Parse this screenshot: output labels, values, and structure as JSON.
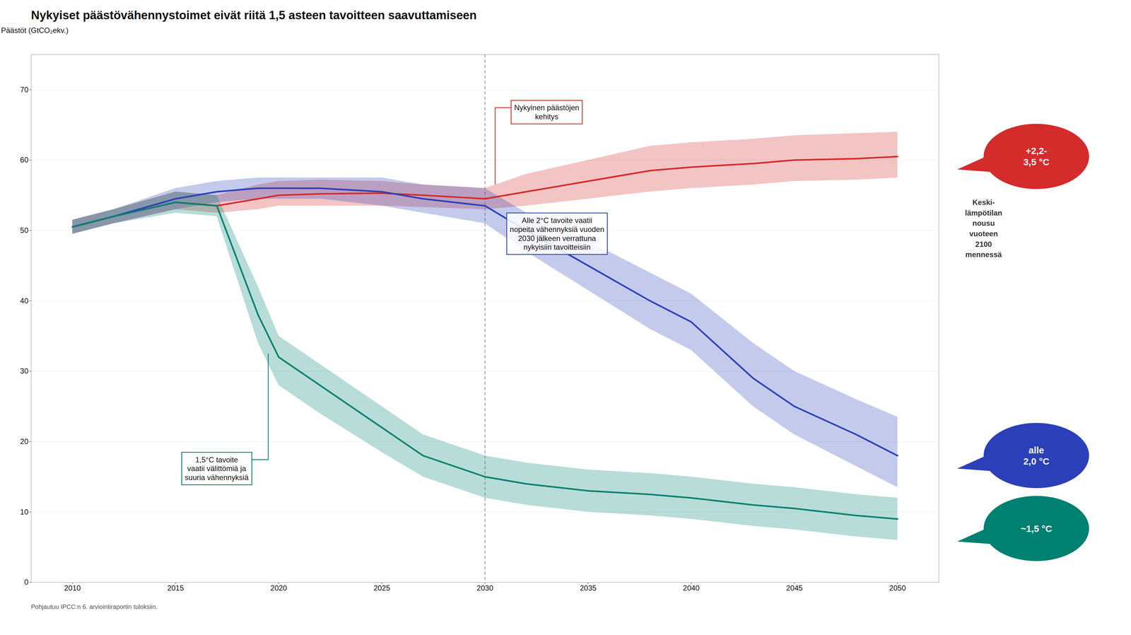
{
  "chart_data": {
    "type": "line",
    "title": "Nykyiset päästövähennystoimet eivät riitä 1,5 asteen tavoitteen saavuttamiseen",
    "y_label": "Päästöt (GtCO₂ekv.)",
    "caption": "Pohjautuu IPCC:n 6. arviointiraportin tuloksiin.",
    "x": [
      2010,
      2012,
      2015,
      2017,
      2019,
      2020,
      2022,
      2025,
      2027,
      2030,
      2032,
      2035,
      2038,
      2040,
      2043,
      2045,
      2048,
      2050
    ],
    "series": [
      {
        "color": "#888888",
        "values": [
          50.5,
          52.0,
          54.0,
          53.5,
          null,
          null,
          null,
          null,
          null,
          null,
          null,
          null,
          null,
          null,
          null,
          null,
          null,
          null
        ]
      },
      {
        "name": "+2,2-\n3,5 °C",
        "color": "#d42b2b",
        "values": [
          50.5,
          52.0,
          54.0,
          53.5,
          54.5,
          55.0,
          55.2,
          55.3,
          55.0,
          54.5,
          55.5,
          57.0,
          58.5,
          59.0,
          59.5,
          60.0,
          60.2,
          60.5
        ],
        "upper": [
          51.5,
          53.0,
          55.5,
          55.0,
          56.5,
          57.0,
          57.2,
          57.0,
          56.5,
          56.0,
          58.0,
          60.0,
          62.0,
          62.5,
          63.0,
          63.5,
          63.8,
          64.0
        ],
        "lower": [
          49.5,
          51.0,
          53.0,
          52.5,
          53.0,
          53.5,
          53.5,
          53.5,
          53.3,
          53.0,
          53.5,
          54.5,
          55.5,
          56.0,
          56.5,
          57.0,
          57.2,
          57.5
        ]
      },
      {
        "name": "alle\n2,0 °C",
        "color": "#2b40b8",
        "values": [
          50.5,
          52.0,
          54.5,
          55.5,
          56.0,
          56.0,
          56.0,
          55.5,
          54.5,
          53.5,
          50.0,
          45.0,
          40.0,
          37.0,
          29.0,
          25.0,
          21.0,
          18.0
        ],
        "upper": [
          51.5,
          53.0,
          56.0,
          57.0,
          57.5,
          57.5,
          57.5,
          57.5,
          56.5,
          56.0,
          52.5,
          48.5,
          44.0,
          41.0,
          34.0,
          30.0,
          26.0,
          23.5
        ],
        "lower": [
          49.5,
          51.0,
          53.0,
          54.0,
          54.5,
          54.5,
          54.5,
          53.5,
          52.5,
          51.0,
          47.0,
          41.5,
          36.0,
          33.0,
          25.0,
          21.0,
          16.5,
          13.5
        ]
      },
      {
        "name": "~1,5 °C",
        "color": "#008070",
        "values": [
          50.5,
          52.0,
          54.0,
          53.5,
          38.0,
          32.0,
          28.0,
          22.0,
          18.0,
          15.0,
          14.0,
          13.0,
          12.5,
          12.0,
          11.0,
          10.5,
          9.5,
          9.0
        ],
        "upper": [
          51.5,
          53.0,
          55.5,
          55.0,
          42.0,
          35.0,
          31.0,
          25.0,
          21.0,
          18.0,
          17.0,
          16.0,
          15.5,
          15.0,
          14.0,
          13.5,
          12.5,
          12.0
        ],
        "lower": [
          49.5,
          51.0,
          52.5,
          52.0,
          34.0,
          28.0,
          24.0,
          18.5,
          15.0,
          12.0,
          11.0,
          10.0,
          9.5,
          9.0,
          8.0,
          7.5,
          6.5,
          6.0
        ]
      }
    ],
    "xlim": [
      2008,
      2052
    ],
    "xticks": [
      2010,
      2015,
      2020,
      2025,
      2030,
      2035,
      2040,
      2045,
      2050
    ],
    "ylim": [
      0,
      75
    ],
    "yticks": [
      0,
      10,
      20,
      30,
      40,
      50,
      60,
      70
    ],
    "grid": "y",
    "reference_lines": [
      {
        "x": 2030,
        "line_style": "dashed"
      }
    ],
    "legend_title": "Keski-\nlämpötilan\nnousu\nvuoteen\n2100\nmennessä",
    "annotations": [
      {
        "text": "Nykyinen päästöjen\nkehitys",
        "x": 2033,
        "y": 68,
        "xy": [
          2030.5,
          56.5
        ],
        "color": "#d42b2b"
      },
      {
        "text": "Alle 2°C tavoite vaatii\nnopeita vähennyksiä vuoden\n2030 jälkeen verrattuna\nnykyisiin tavoitteisiin",
        "x": 2033.5,
        "y": 52.0,
        "color": "#2b40b8"
      },
      {
        "text": "1,5°C tavoite\nvaatii välittömiä ja\nsuuria vähennyksiä",
        "x": 2017,
        "y": 18.0,
        "xy": [
          2019.5,
          32.5
        ],
        "color": "#008070"
      }
    ]
  }
}
